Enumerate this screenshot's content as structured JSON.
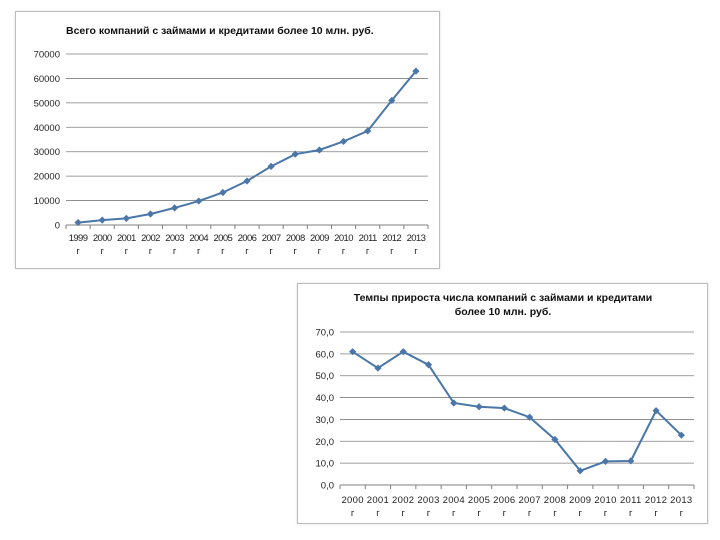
{
  "chart_data": [
    {
      "type": "line",
      "title": "Всего компаний с займами и кредитами более 10 млн. руб.",
      "categories": [
        "1999",
        "2000",
        "2001",
        "2002",
        "2003",
        "2004",
        "2005",
        "2006",
        "2007",
        "2008",
        "2009",
        "2010",
        "2011",
        "2012",
        "2013"
      ],
      "category_suffix": "г",
      "series": [
        {
          "name": "Всего компаний",
          "values": [
            1000,
            2000,
            2700,
            4500,
            7000,
            9800,
            13300,
            18000,
            24000,
            29000,
            30700,
            34200,
            38500,
            51000,
            63000
          ]
        }
      ],
      "yticks": [
        "0",
        "10000",
        "20000",
        "30000",
        "40000",
        "50000",
        "60000",
        "70000"
      ],
      "ylim": [
        0,
        70000
      ],
      "xlabel": "",
      "ylabel": "",
      "grid": true,
      "color": "#4a76a8"
    },
    {
      "type": "line",
      "title_lines": [
        "Темпы прироста числа компаний с займами и кредитами",
        "более 10 млн. руб."
      ],
      "categories": [
        "2000",
        "2001",
        "2002",
        "2003",
        "2004",
        "2005",
        "2006",
        "2007",
        "2008",
        "2009",
        "2010",
        "2011",
        "2012",
        "2013"
      ],
      "category_suffix": "г",
      "series": [
        {
          "name": "Темпы прироста",
          "values": [
            61.0,
            53.5,
            61.0,
            55.0,
            37.5,
            35.8,
            35.2,
            31.0,
            20.8,
            6.5,
            10.8,
            11.0,
            34.0,
            22.8
          ]
        }
      ],
      "yticks": [
        "0,0",
        "10,0",
        "20,0",
        "30,0",
        "40,0",
        "50,0",
        "60,0",
        "70,0"
      ],
      "ylim": [
        0,
        70
      ],
      "xlabel": "",
      "ylabel": "",
      "grid": true,
      "color": "#4a76a8"
    }
  ]
}
